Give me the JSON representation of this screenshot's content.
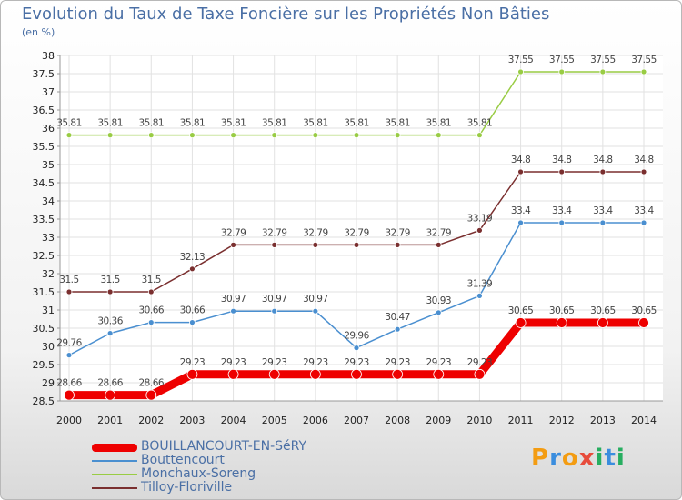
{
  "title": "Evolution du Taux de Taxe Foncière sur les Propriétés Non Bâties",
  "unit": "(en %)",
  "logo": {
    "text": "Proxiti",
    "letters": [
      "P",
      "r",
      "o",
      "x",
      "i",
      "t",
      "i"
    ],
    "colors": [
      "#f39c12",
      "#3a8dde",
      "#f39c12",
      "#e74c3c",
      "#27ae60",
      "#3a8dde",
      "#27ae60"
    ]
  },
  "chart_data": {
    "type": "line",
    "categories": [
      "2000",
      "2001",
      "2002",
      "2003",
      "2004",
      "2005",
      "2006",
      "2007",
      "2008",
      "2009",
      "2010",
      "2011",
      "2012",
      "2013",
      "2014"
    ],
    "ylim": [
      28.5,
      38
    ],
    "yticks": [
      "28.5",
      "29",
      "29.5",
      "30",
      "30.5",
      "31",
      "31.5",
      "32",
      "32.5",
      "33",
      "33.5",
      "34",
      "34.5",
      "35",
      "35.5",
      "36",
      "36.5",
      "37",
      "37.5",
      "38"
    ],
    "grid": true,
    "legend": "bottom-left",
    "series": [
      {
        "name": "Monchaux-Soreng",
        "color": "#99cc44",
        "width": 1.5,
        "values": [
          35.81,
          35.81,
          35.81,
          35.81,
          35.81,
          35.81,
          35.81,
          35.81,
          35.81,
          35.81,
          35.81,
          37.55,
          37.55,
          37.55,
          37.55
        ],
        "labels": [
          "35.81",
          "35.81",
          "35.81",
          "35.81",
          "35.81",
          "35.81",
          "35.81",
          "35.81",
          "35.81",
          "35.81",
          "35.81",
          "37.55",
          "37.55",
          "37.55",
          "37.55"
        ]
      },
      {
        "name": "Tilloy-Floriville",
        "color": "#7a2f2f",
        "width": 1.5,
        "values": [
          31.5,
          31.5,
          31.5,
          32.13,
          32.79,
          32.79,
          32.79,
          32.79,
          32.79,
          32.79,
          33.19,
          34.8,
          34.8,
          34.8,
          34.8
        ],
        "labels": [
          "31.5",
          "31.5",
          "31.5",
          "32.13",
          "32.79",
          "32.79",
          "32.79",
          "32.79",
          "32.79",
          "32.79",
          "33.19",
          "34.8",
          "34.8",
          "34.8",
          "34.8"
        ]
      },
      {
        "name": "Bouttencourt",
        "color": "#4a8fd0",
        "width": 1.5,
        "values": [
          29.76,
          30.36,
          30.66,
          30.66,
          30.97,
          30.97,
          30.97,
          29.96,
          30.47,
          30.93,
          31.39,
          33.4,
          33.4,
          33.4,
          33.4
        ],
        "labels": [
          "29.76",
          "30.36",
          "30.66",
          "30.66",
          "30.97",
          "30.97",
          "30.97",
          "29.96",
          "30.47",
          "30.93",
          "31.39",
          "33.4",
          "33.4",
          "33.4",
          "33.4"
        ]
      },
      {
        "name": "BOUILLANCOURT-EN-SéRY",
        "color": "#ee0000",
        "width": 9,
        "values": [
          28.66,
          28.66,
          28.66,
          29.23,
          29.23,
          29.23,
          29.23,
          29.23,
          29.23,
          29.23,
          29.23,
          30.65,
          30.65,
          30.65,
          30.65
        ],
        "labels": [
          "28.66",
          "28.66",
          "28.66",
          "29.23",
          "29.23",
          "29.23",
          "29.23",
          "29.23",
          "29.23",
          "29.23",
          "29.23",
          "30.65",
          "30.65",
          "30.65",
          "30.65"
        ]
      }
    ]
  },
  "legend_items": [
    {
      "label": "BOUILLANCOURT-EN-SéRY",
      "color": "#ee0000",
      "thick": 9
    },
    {
      "label": "Bouttencourt",
      "color": "#4a8fd0",
      "thick": 2
    },
    {
      "label": "Monchaux-Soreng",
      "color": "#99cc44",
      "thick": 2
    },
    {
      "label": "Tilloy-Floriville",
      "color": "#7a2f2f",
      "thick": 2
    }
  ]
}
